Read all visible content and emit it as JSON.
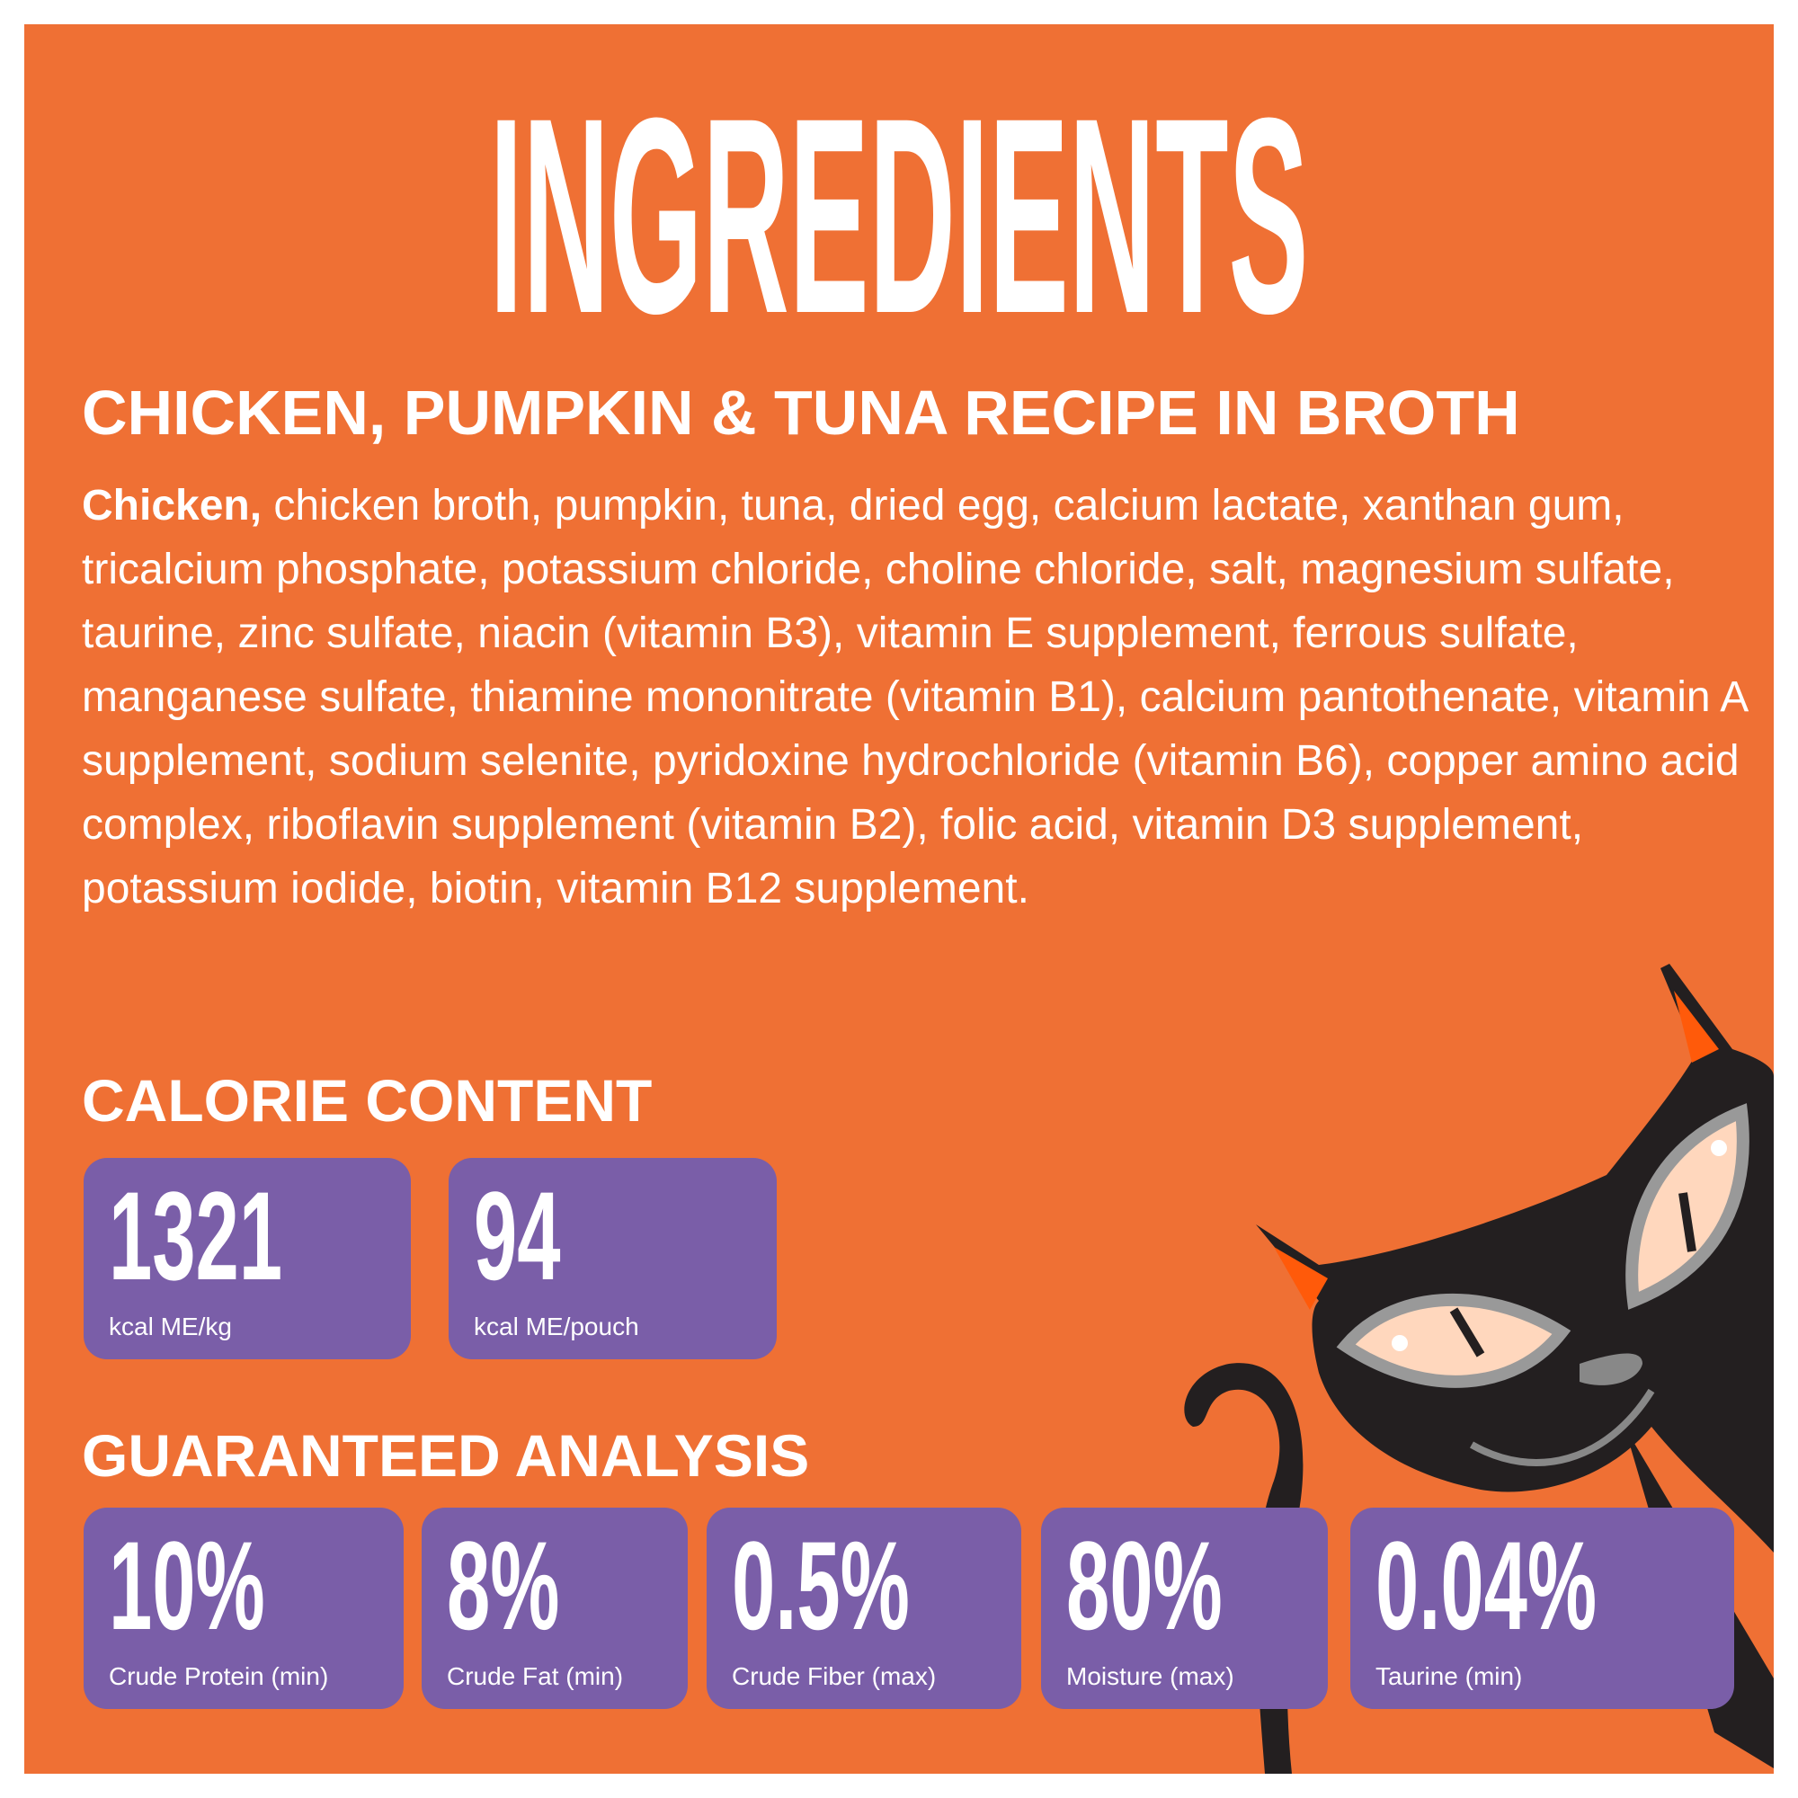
{
  "title": "INGREDIENTS",
  "subtitle": "CHICKEN, PUMPKIN & TUNA RECIPE IN BROTH",
  "ingredients": {
    "first": "Chicken,",
    "rest": " chicken broth, pumpkin, tuna, dried egg, calcium lactate, xanthan gum, tricalcium phosphate, potassium chloride, choline chloride, salt, magnesium sulfate, taurine, zinc sulfate, niacin (vitamin B3), vitamin E supplement, ferrous sulfate, manganese sulfate, thiamine mononitrate (vitamin B1), calcium pantothenate, vitamin A supplement, sodium selenite, pyridoxine hydrochloride (vitamin B6), copper amino acid complex, riboflavin supplement (vitamin B2), folic acid, vitamin D3 supplement, potassium iodide, biotin, vitamin B12 supplement."
  },
  "calorie": {
    "heading": "CALORIE CONTENT",
    "items": [
      {
        "value": "1321",
        "label": "kcal ME/kg"
      },
      {
        "value": "94",
        "label": "kcal ME/pouch"
      }
    ]
  },
  "analysis": {
    "heading": "GUARANTEED ANALYSIS",
    "items": [
      {
        "value": "10%",
        "label": "Crude Protein (min)"
      },
      {
        "value": "8%",
        "label": "Crude Fat (min)"
      },
      {
        "value": "0.5%",
        "label": "Crude Fiber (max)"
      },
      {
        "value": "80%",
        "label": "Moisture (max)"
      },
      {
        "value": "0.04%",
        "label": "Taurine (min)"
      }
    ]
  },
  "colors": {
    "background": "#ef7034",
    "box": "#7a5ea8",
    "text": "#ffffff",
    "cat": "#231f20"
  },
  "illustration": "black-cat-icon"
}
